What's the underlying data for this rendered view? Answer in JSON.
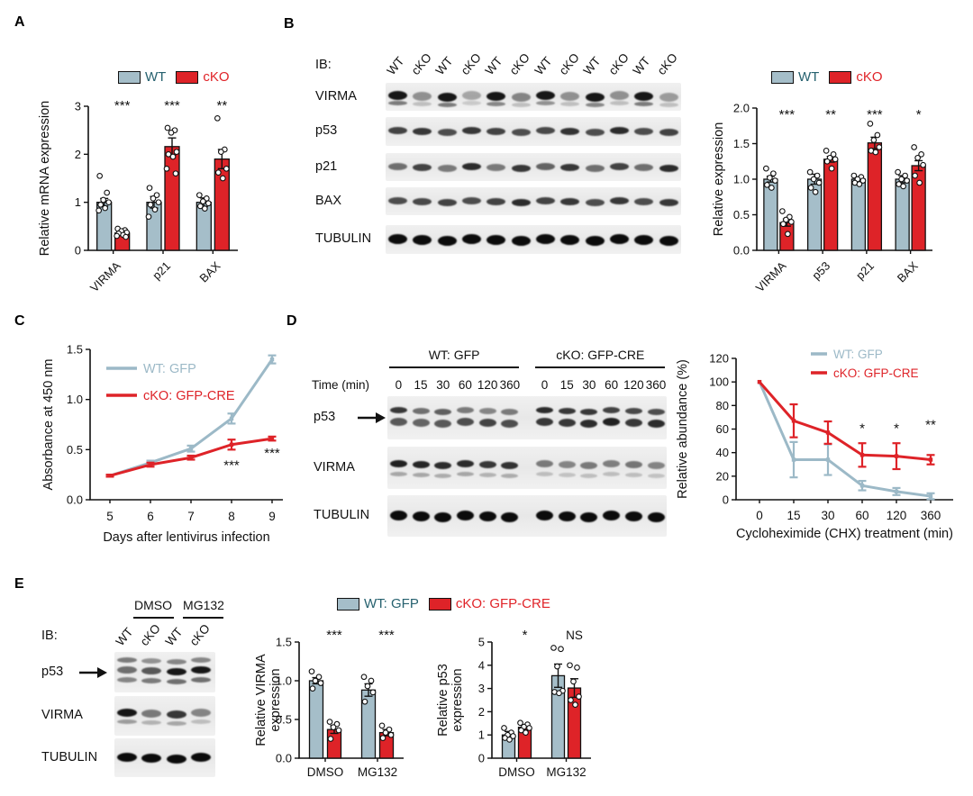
{
  "colors": {
    "wt": "#A5BEC9",
    "cko": "#DE2328",
    "wt_line": "#9CB9C7",
    "wt_text": "#26616F",
    "cko_text": "#E02328",
    "axis": "#111111"
  },
  "panels": {
    "a": {
      "label": "A",
      "legend": {
        "items": [
          {
            "label": "WT",
            "color": "wt"
          },
          {
            "label": "cKO",
            "color": "cko"
          }
        ]
      }
    },
    "b": {
      "label": "B",
      "legend": {
        "items": [
          {
            "label": "WT",
            "color": "wt"
          },
          {
            "label": "cKO",
            "color": "cko"
          }
        ]
      },
      "blot": {
        "ib_label": "IB:",
        "lane_labels": [
          "WT",
          "cKO",
          "WT",
          "cKO",
          "WT",
          "cKO",
          "WT",
          "cKO",
          "WT",
          "cKO",
          "WT",
          "cKO"
        ],
        "rows": [
          {
            "label": "VIRMA",
            "bands": [
              {
                "dy": -1,
                "th": 10,
                "int": [
                  0.95,
                  0.4,
                  0.95,
                  0.3,
                  0.95,
                  0.45,
                  0.95,
                  0.4,
                  0.95,
                  0.4,
                  0.95,
                  0.35
                ]
              },
              {
                "dy": 8,
                "th": 5,
                "int": [
                  0.5,
                  0.2,
                  0.5,
                  0.15,
                  0.45,
                  0.2,
                  0.4,
                  0.2,
                  0.45,
                  0.2,
                  0.5,
                  0.2
                ]
              }
            ]
          },
          {
            "label": "p53",
            "bands": [
              {
                "dy": 0,
                "th": 8,
                "int": [
                  0.75,
                  0.8,
                  0.7,
                  0.8,
                  0.75,
                  0.7,
                  0.72,
                  0.82,
                  0.7,
                  0.85,
                  0.7,
                  0.75
                ]
              }
            ]
          },
          {
            "label": "p21",
            "bands": [
              {
                "dy": 0,
                "th": 8,
                "int": [
                  0.55,
                  0.75,
                  0.5,
                  0.85,
                  0.5,
                  0.8,
                  0.6,
                  0.8,
                  0.55,
                  0.75,
                  0.55,
                  0.85
                ]
              }
            ]
          },
          {
            "label": "BAX",
            "bands": [
              {
                "dy": 0,
                "th": 8,
                "int": [
                  0.7,
                  0.72,
                  0.75,
                  0.7,
                  0.75,
                  0.85,
                  0.75,
                  0.8,
                  0.7,
                  0.8,
                  0.7,
                  0.8
                ]
              }
            ]
          },
          {
            "label": "TUBULIN",
            "bands": [
              {
                "dy": 0,
                "th": 11,
                "int": [
                  1,
                  1,
                  1,
                  1,
                  1,
                  1,
                  1,
                  1,
                  1,
                  1,
                  1,
                  1
                ]
              }
            ]
          }
        ]
      }
    },
    "c": {
      "label": "C"
    },
    "d": {
      "label": "D",
      "blot": {
        "time_label": "Time (min)",
        "groups": [
          "WT: GFP",
          "cKO: GFP-CRE"
        ],
        "time_points": [
          "0",
          "15",
          "30",
          "60",
          "120",
          "360"
        ],
        "rows": [
          {
            "label": "p53",
            "arrow": true,
            "bands": [
              {
                "dy": -8,
                "th": 7,
                "int": [
                  0.8,
                  0.55,
                  0.62,
                  0.5,
                  0.45,
                  0.5,
                  0.85,
                  0.8,
                  0.8,
                  0.75,
                  0.72,
                  0.7
                ]
              },
              {
                "dy": 5,
                "th": 9,
                "int": [
                  0.65,
                  0.6,
                  0.65,
                  0.7,
                  0.75,
                  0.7,
                  0.8,
                  0.8,
                  0.85,
                  0.9,
                  0.8,
                  0.85
                ]
              }
            ]
          },
          {
            "label": "VIRMA",
            "bands": [
              {
                "dy": -4,
                "th": 8,
                "int": [
                  0.9,
                  0.88,
                  0.85,
                  0.85,
                  0.8,
                  0.82,
                  0.5,
                  0.45,
                  0.5,
                  0.48,
                  0.52,
                  0.45
                ]
              },
              {
                "dy": 8,
                "th": 5,
                "int": [
                  0.3,
                  0.3,
                  0.28,
                  0.3,
                  0.25,
                  0.28,
                  0.2,
                  0.18,
                  0.2,
                  0.2,
                  0.2,
                  0.18
                ]
              }
            ]
          },
          {
            "label": "TUBULIN",
            "bands": [
              {
                "dy": 0,
                "th": 11,
                "int": [
                  1,
                  1,
                  1,
                  1,
                  1,
                  1,
                  1,
                  1,
                  1,
                  1,
                  1,
                  1
                ]
              }
            ]
          }
        ]
      }
    },
    "e": {
      "label": "E",
      "legend": {
        "items": [
          {
            "label": "WT: GFP",
            "color": "wt"
          },
          {
            "label": "cKO: GFP-CRE",
            "color": "cko"
          }
        ]
      },
      "blot": {
        "ib_label": "IB:",
        "groups": [
          "DMSO",
          "MG132"
        ],
        "lane_labels": [
          "WT",
          "cKO",
          "WT",
          "cKO"
        ],
        "rows": [
          {
            "label": "p53",
            "arrow": true,
            "bands": [
              {
                "dy": -13,
                "th": 6,
                "int": [
                  0.5,
                  0.4,
                  0.45,
                  0.45
                ]
              },
              {
                "dy": -2,
                "th": 8,
                "int": [
                  0.55,
                  0.65,
                  0.95,
                  0.95
                ]
              },
              {
                "dy": 9,
                "th": 6,
                "int": [
                  0.45,
                  0.5,
                  0.55,
                  0.55
                ]
              }
            ]
          },
          {
            "label": "VIRMA",
            "bands": [
              {
                "dy": -3,
                "th": 9,
                "int": [
                  0.95,
                  0.5,
                  0.8,
                  0.45
                ]
              },
              {
                "dy": 7,
                "th": 5,
                "int": [
                  0.35,
                  0.25,
                  0.3,
                  0.2
                ]
              }
            ]
          },
          {
            "label": "TUBULIN",
            "bands": [
              {
                "dy": 0,
                "th": 10,
                "int": [
                  1,
                  1,
                  1,
                  1
                ]
              }
            ]
          }
        ]
      }
    }
  },
  "chart_data": [
    {
      "panel": "A",
      "type": "bar",
      "ylabel": [
        "Relative mRNA expression"
      ],
      "ylim": [
        0,
        3
      ],
      "yticks": [
        0,
        1,
        2,
        3
      ],
      "ytick_labels": [
        "0",
        "1",
        "2",
        "3"
      ],
      "categories": [
        "VIRMA",
        "p21",
        "BAX"
      ],
      "series": [
        {
          "name": "WT",
          "color": "wt",
          "values": [
            1.0,
            1.0,
            1.0
          ],
          "errors": [
            0.08,
            0.12,
            0.09
          ],
          "points": [
            [
              1.55,
              1.2,
              1.05,
              1.0,
              0.95,
              0.88,
              0.83
            ],
            [
              1.3,
              1.15,
              1.08,
              1.0,
              0.95,
              0.85,
              0.7
            ],
            [
              1.15,
              1.08,
              1.02,
              0.98,
              0.92,
              0.87
            ]
          ]
        },
        {
          "name": "cKO",
          "color": "cko",
          "values": [
            0.36,
            2.16,
            1.9
          ],
          "errors": [
            0.04,
            0.18,
            0.2
          ],
          "points": [
            [
              0.45,
              0.42,
              0.4,
              0.37,
              0.35,
              0.32,
              0.3,
              0.28
            ],
            [
              2.55,
              2.5,
              2.45,
              2.05,
              2.0,
              1.95,
              1.7,
              1.6
            ],
            [
              2.75,
              2.1,
              2.05,
              1.7,
              1.62,
              1.5
            ]
          ]
        }
      ],
      "sig": [
        "***",
        "***",
        "**"
      ]
    },
    {
      "panel": "B",
      "type": "bar",
      "ylabel": [
        "Relative expression"
      ],
      "ylim": [
        0,
        2
      ],
      "yticks": [
        0,
        0.5,
        1,
        1.5,
        2
      ],
      "ytick_labels": [
        "0.0",
        "0.5",
        "1.0",
        "1.5",
        "2.0"
      ],
      "categories": [
        "VIRMA",
        "p53",
        "p21",
        "BAX"
      ],
      "series": [
        {
          "name": "WT",
          "color": "wt",
          "values": [
            1.0,
            1.0,
            1.0,
            1.0
          ],
          "errors": [
            0.04,
            0.07,
            0.03,
            0.05
          ],
          "points": [
            [
              1.15,
              1.08,
              1.02,
              0.98,
              0.92,
              0.88
            ],
            [
              1.1,
              1.05,
              1.0,
              0.95,
              0.88,
              0.82
            ],
            [
              1.05,
              1.03,
              1.0,
              0.98,
              0.95,
              0.93
            ],
            [
              1.1,
              1.05,
              1.0,
              0.98,
              0.93,
              0.9
            ]
          ]
        },
        {
          "name": "cKO",
          "color": "cko",
          "values": [
            0.39,
            1.28,
            1.51,
            1.19
          ],
          "errors": [
            0.05,
            0.04,
            0.08,
            0.07
          ],
          "points": [
            [
              0.55,
              0.47,
              0.43,
              0.4,
              0.37,
              0.23
            ],
            [
              1.4,
              1.35,
              1.3,
              1.28,
              1.25,
              1.15
            ],
            [
              1.78,
              1.62,
              1.55,
              1.45,
              1.4,
              1.38
            ],
            [
              1.45,
              1.35,
              1.3,
              1.2,
              1.05,
              0.95
            ]
          ]
        }
      ],
      "sig": [
        "***",
        "**",
        "***",
        "*"
      ]
    },
    {
      "panel": "C",
      "type": "line",
      "xlabel": "Days after lentivirus infection",
      "ylabel": [
        "Absorbance at 450 nm"
      ],
      "ylim": [
        0,
        1.5
      ],
      "yticks": [
        0,
        0.5,
        1,
        1.5
      ],
      "ytick_labels": [
        "0.0",
        "0.5",
        "1.0",
        "1.5"
      ],
      "xtick_labels": [
        "5",
        "6",
        "7",
        "8",
        "9"
      ],
      "series": [
        {
          "name": "WT: GFP",
          "color": "wt_line",
          "values": [
            0.24,
            0.37,
            0.51,
            0.81,
            1.4
          ],
          "errors": [
            0.01,
            0.02,
            0.03,
            0.05,
            0.04
          ]
        },
        {
          "name": "cKO: GFP-CRE",
          "color": "cko",
          "values": [
            0.24,
            0.35,
            0.42,
            0.55,
            0.61
          ],
          "errors": [
            0.01,
            0.02,
            0.02,
            0.05,
            0.02
          ]
        }
      ],
      "sig": [
        {
          "xi": 3,
          "label": "***",
          "v": 0.3
        },
        {
          "xi": 4,
          "label": "***",
          "v": 0.42
        }
      ]
    },
    {
      "panel": "D",
      "type": "line",
      "xlabel": "Cycloheximide (CHX) treatment (min)",
      "ylabel": [
        "Relative abundance (%)"
      ],
      "ylim": [
        0,
        120
      ],
      "yticks": [
        0,
        20,
        40,
        60,
        80,
        100,
        120
      ],
      "ytick_labels": [
        "0",
        "20",
        "40",
        "60",
        "80",
        "100",
        "120"
      ],
      "xtick_labels": [
        "0",
        "15",
        "30",
        "60",
        "120",
        "360"
      ],
      "series": [
        {
          "name": "WT: GFP",
          "color": "wt_line",
          "values": [
            100,
            34,
            34,
            12,
            7,
            3
          ],
          "errors": [
            0,
            15,
            13,
            4,
            3,
            2.5
          ]
        },
        {
          "name": "cKO: GFP-CRE",
          "color": "cko",
          "values": [
            100,
            67,
            57,
            38,
            37,
            34
          ],
          "errors": [
            0,
            14,
            9.5,
            10,
            11,
            4
          ]
        }
      ],
      "sig": [
        {
          "xi": 3,
          "label": "*",
          "v": 57
        },
        {
          "xi": 4,
          "label": "*",
          "v": 57
        },
        {
          "xi": 5,
          "label": "**",
          "v": 60
        }
      ]
    },
    {
      "panel": "E",
      "type": "bar",
      "ylabel": [
        "Relative VIRMA",
        "expression"
      ],
      "ylim": [
        0,
        1.5
      ],
      "yticks": [
        0,
        0.5,
        1,
        1.5
      ],
      "ytick_labels": [
        "0.0",
        "0.5",
        "1.0",
        "1.5"
      ],
      "categories": [
        "DMSO",
        "MG132"
      ],
      "series": [
        {
          "name": "WT: GFP",
          "color": "wt",
          "values": [
            1.0,
            0.88
          ],
          "errors": [
            0.04,
            0.08
          ],
          "points": [
            [
              1.12,
              1.05,
              1.0,
              0.97,
              0.9
            ],
            [
              1.05,
              1.0,
              0.93,
              0.85,
              0.73
            ]
          ]
        },
        {
          "name": "cKO: GFP-CRE",
          "color": "cko",
          "values": [
            0.37,
            0.33
          ],
          "errors": [
            0.05,
            0.04
          ],
          "points": [
            [
              0.47,
              0.44,
              0.4,
              0.36,
              0.25
            ],
            [
              0.42,
              0.37,
              0.33,
              0.3,
              0.26
            ]
          ]
        }
      ],
      "sig": [
        "***",
        "***"
      ]
    },
    {
      "panel": "E",
      "type": "bar",
      "ylabel": [
        "Relative p53",
        "expression"
      ],
      "ylim": [
        0,
        5
      ],
      "yticks": [
        0,
        1,
        2,
        3,
        4,
        5
      ],
      "ytick_labels": [
        "0",
        "1",
        "2",
        "3",
        "4",
        "5"
      ],
      "categories": [
        "DMSO",
        "MG132"
      ],
      "series": [
        {
          "name": "WT: GFP",
          "color": "wt",
          "values": [
            1.0,
            3.55
          ],
          "errors": [
            0.15,
            0.5
          ],
          "points": [
            [
              1.3,
              1.1,
              1.0,
              0.95,
              0.87,
              0.8
            ],
            [
              4.75,
              4.7,
              3.95,
              2.9,
              2.85,
              2.8
            ]
          ]
        },
        {
          "name": "cKO: GFP-CRE",
          "color": "cko",
          "values": [
            1.33,
            3.02
          ],
          "errors": [
            0.12,
            0.4
          ],
          "points": [
            [
              1.52,
              1.45,
              1.35,
              1.3,
              1.2,
              1.1
            ],
            [
              4.0,
              3.9,
              3.3,
              2.65,
              2.5,
              2.3
            ]
          ]
        }
      ],
      "sig": [
        "*",
        "NS"
      ]
    }
  ]
}
